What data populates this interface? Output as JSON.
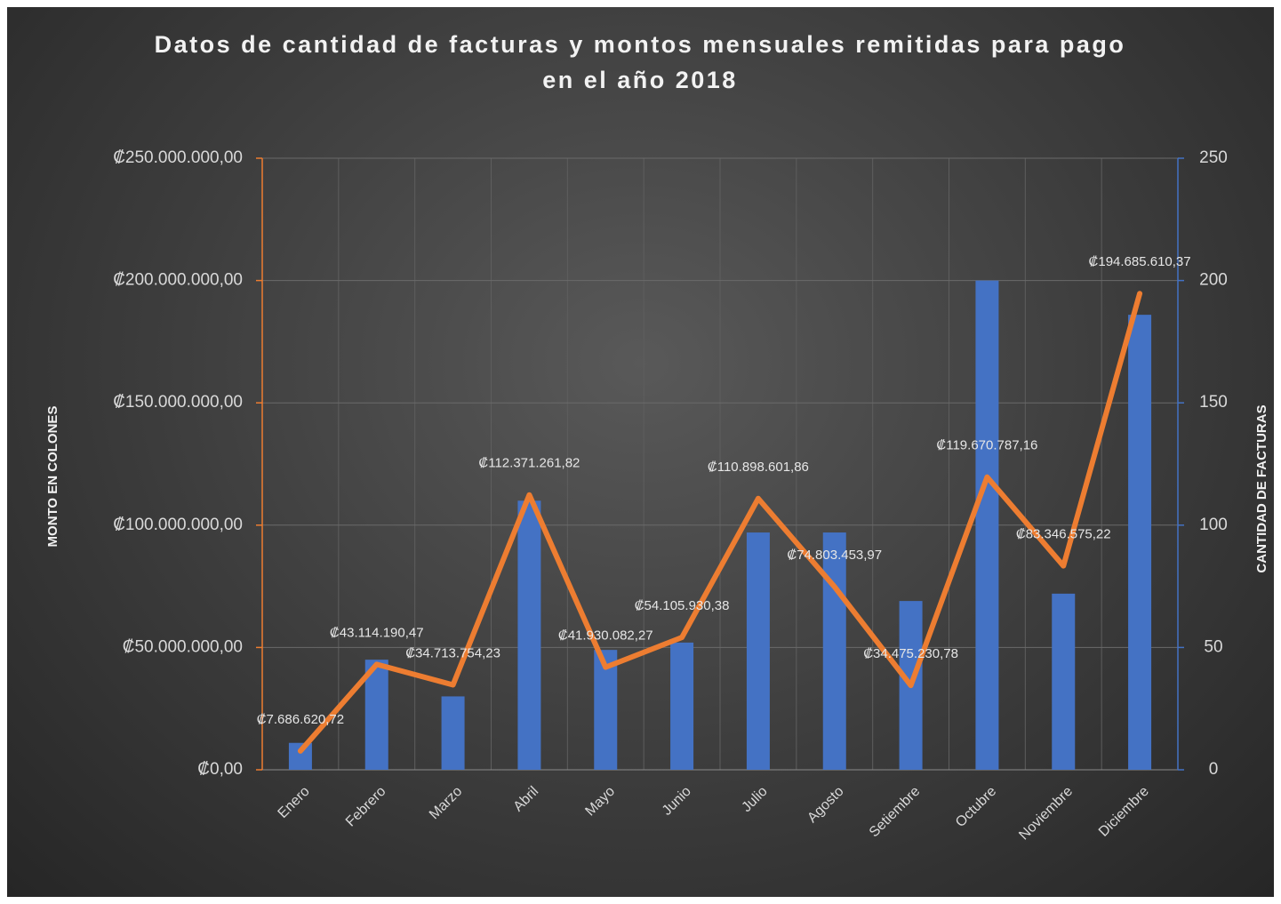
{
  "chart_data": {
    "type": "bar-line",
    "title": "Datos de cantidad de facturas y montos mensuales remitidas para pago en el año 2018",
    "ylabel": "MONTO EN COLONES",
    "y2label": "CANTIDAD DE FACTURAS",
    "categories": [
      "Enero",
      "Febrero",
      "Marzo",
      "Abril",
      "Mayo",
      "Junio",
      "Julio",
      "Agosto",
      "Setiembre",
      "Octubre",
      "Noviembre",
      "Diciembre"
    ],
    "series": [
      {
        "type": "bar",
        "axis": "y2",
        "color": "#4472c4",
        "values": [
          11,
          45,
          30,
          110,
          49,
          52,
          97,
          97,
          69,
          200,
          72,
          186
        ]
      },
      {
        "type": "line",
        "axis": "y",
        "color": "#ed7d31",
        "values": [
          7686620.72,
          43114190.47,
          34713754.23,
          112371261.82,
          41930082.27,
          54105930.38,
          110898601.86,
          74803453.97,
          34475230.78,
          119670787.16,
          83346575.22,
          194685610.37
        ],
        "value_labels": [
          "₡7.686.620,72",
          "₡43.114.190,47",
          "₡34.713.754,23",
          "₡112.371.261,82",
          "₡41.930.082,27",
          "₡54.105.930,38",
          "₡110.898.601,86",
          "₡74.803.453,97",
          "₡34.475.230,78",
          "₡119.670.787,16",
          "₡83.346.575,22",
          "₡194.685.610,37"
        ]
      }
    ],
    "ylim": [
      0,
      250000000
    ],
    "yticks": [
      {
        "value": 0,
        "label": "₡0,00"
      },
      {
        "value": 50000000,
        "label": "₡50.000.000,00"
      },
      {
        "value": 100000000,
        "label": "₡100.000.000,00"
      },
      {
        "value": 150000000,
        "label": "₡150.000.000,00"
      },
      {
        "value": 200000000,
        "label": "₡200.000.000,00"
      },
      {
        "value": 250000000,
        "label": "₡250.000.000,00"
      }
    ],
    "y2lim": [
      0,
      250
    ],
    "y2ticks": [
      0,
      50,
      100,
      150,
      200,
      250
    ],
    "grid": true
  }
}
